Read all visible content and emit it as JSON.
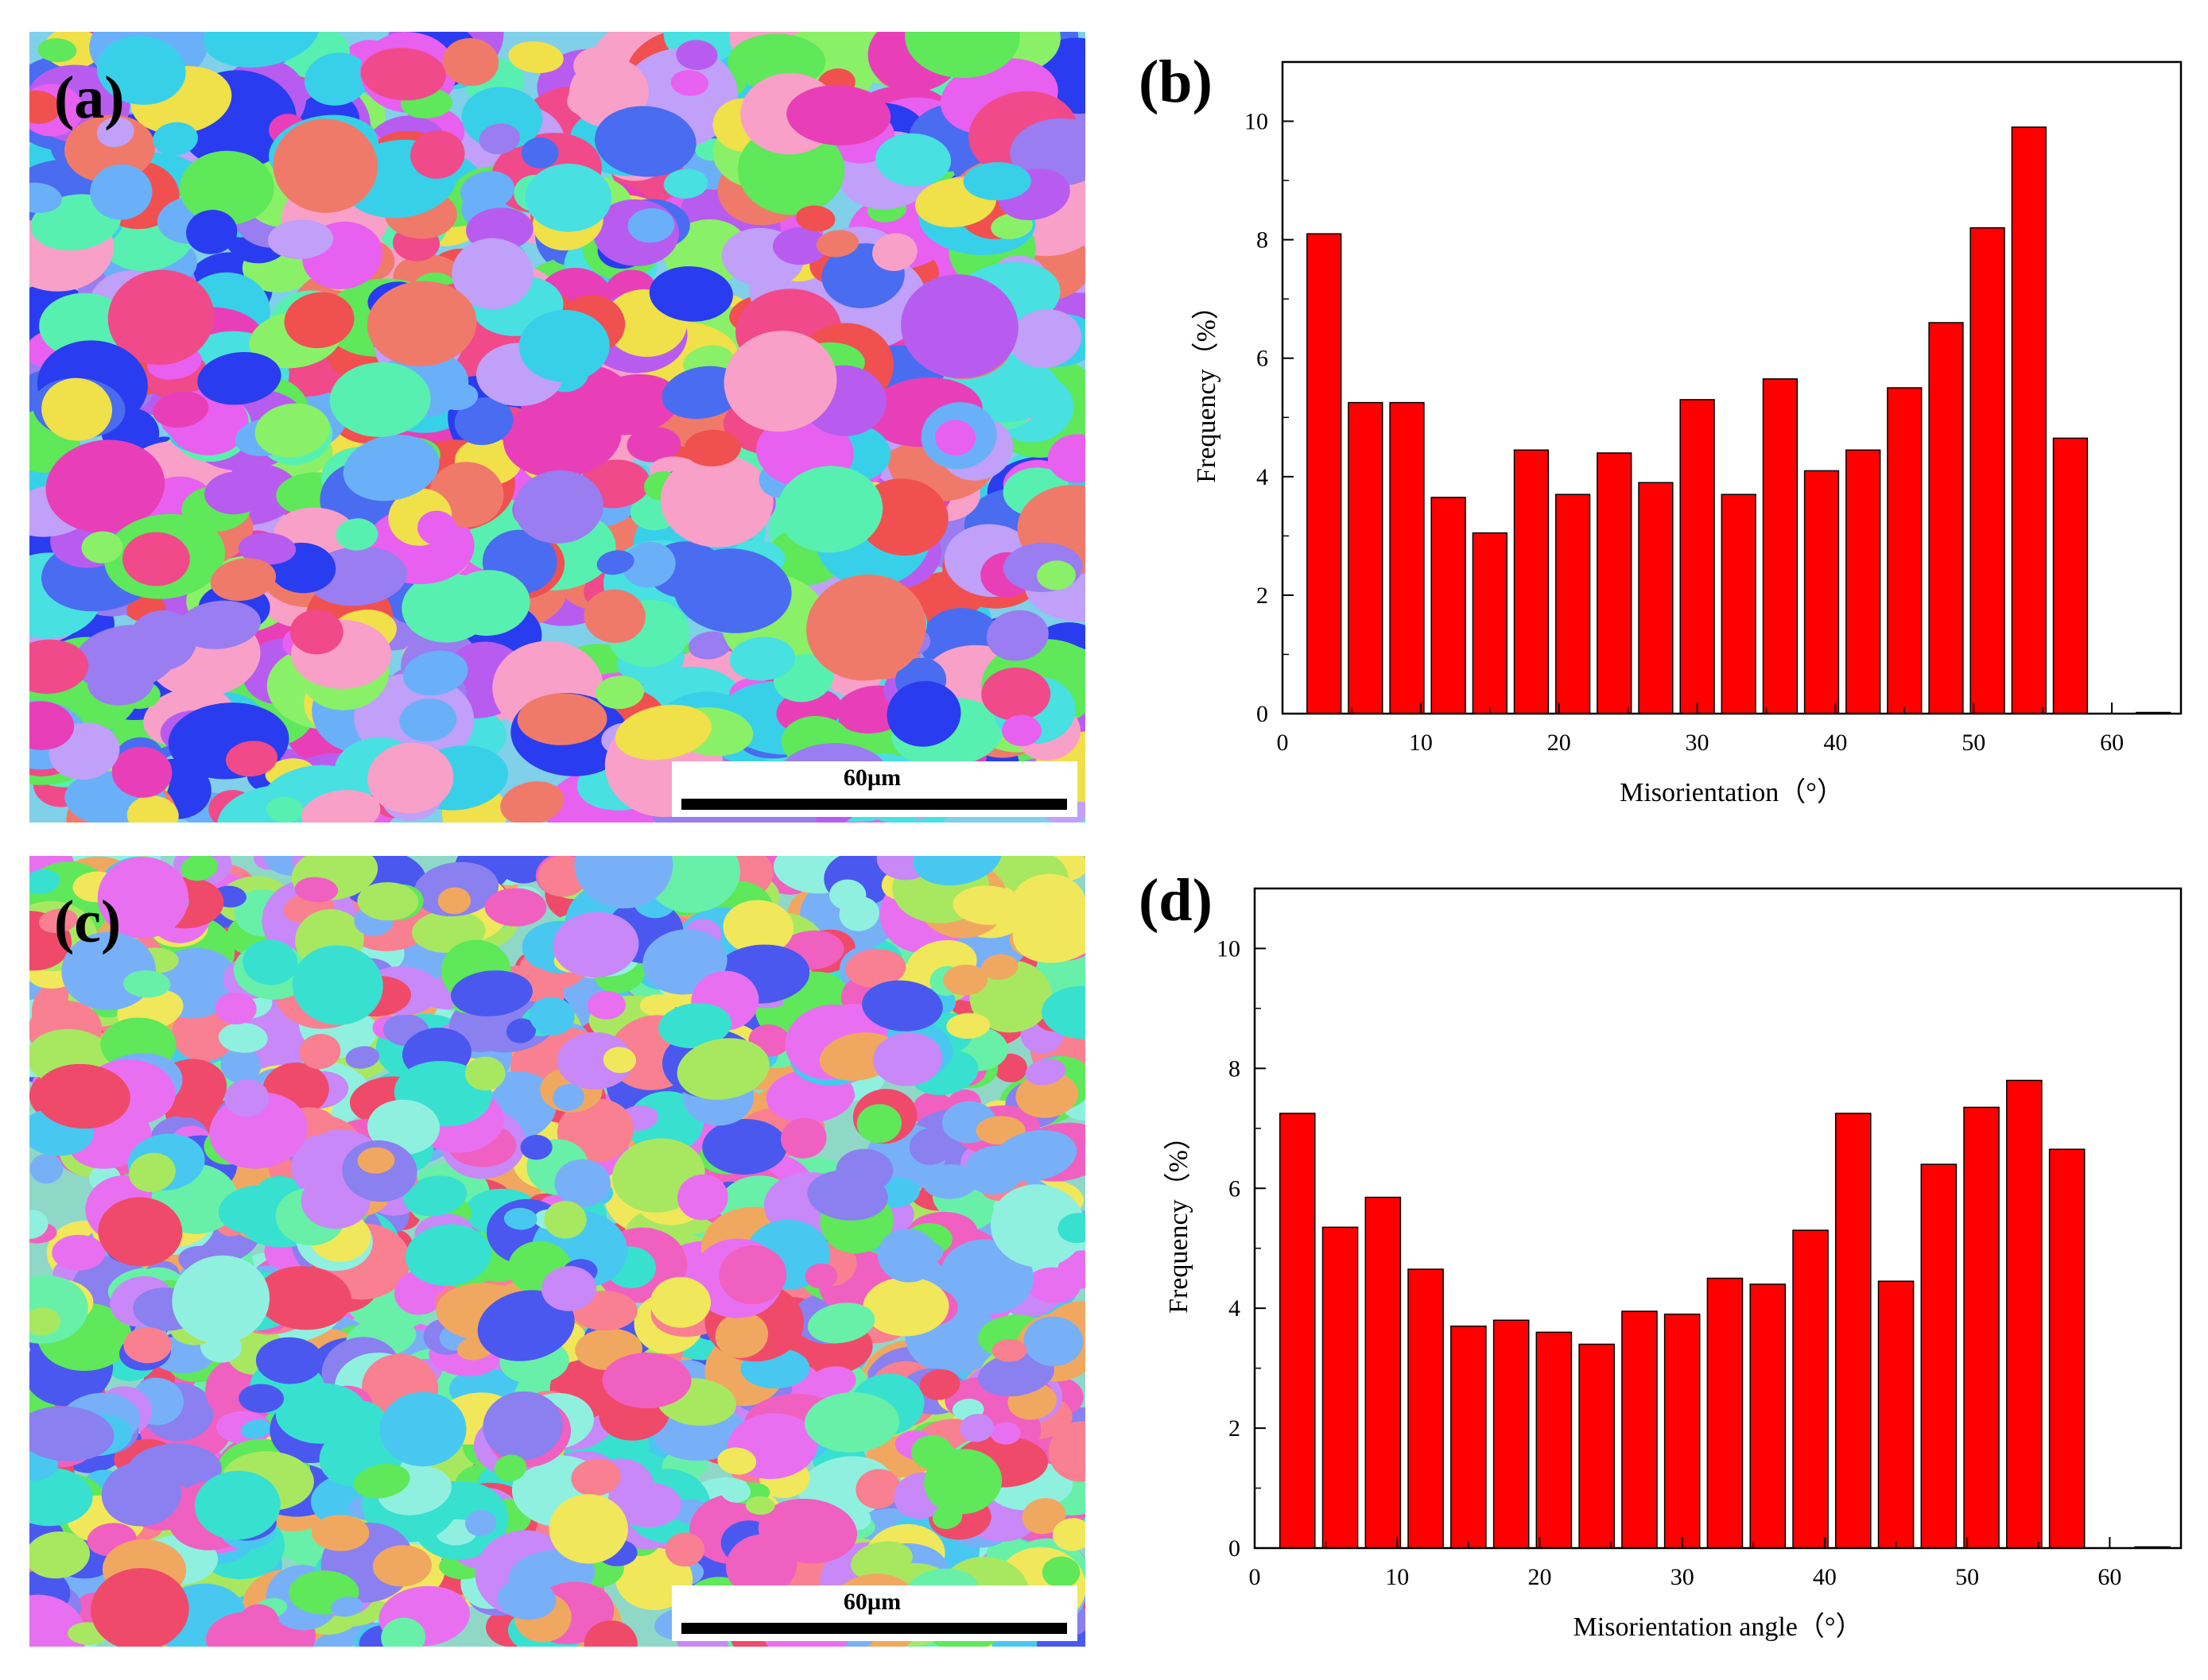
{
  "panels": {
    "a": {
      "label": "(a)",
      "scale_bar": "60µm",
      "colors": [
        "#4a6cf0",
        "#e83fb8",
        "#5ee85a",
        "#38d0e8",
        "#9a7df0",
        "#f07a6a",
        "#f0e04a",
        "#b85cf0",
        "#6ab0f8",
        "#f04a8a",
        "#58f0b0",
        "#2a3cf0",
        "#e860f0",
        "#8af068",
        "#f8a0c8",
        "#48e0e0",
        "#c0a0f8",
        "#f05050"
      ]
    },
    "c": {
      "label": "(c)",
      "scale_bar": "60µm",
      "colors": [
        "#5ee85a",
        "#48c8f0",
        "#8a80f0",
        "#f060c0",
        "#68f0a8",
        "#f0e85a",
        "#4a58f0",
        "#f88090",
        "#a8e860",
        "#38e0d0",
        "#c888f8",
        "#f04a6a",
        "#78b0f8",
        "#f0a860",
        "#e870f0",
        "#90f0e0"
      ]
    }
  },
  "chart_data": [
    {
      "panel_label": "(b)",
      "type": "bar",
      "x": [
        3,
        6,
        9,
        12,
        15,
        18,
        21,
        24,
        27,
        30,
        33,
        36,
        39,
        42,
        45,
        48,
        51,
        54,
        57,
        60,
        63
      ],
      "values": [
        8.1,
        5.25,
        5.25,
        3.65,
        3.05,
        4.45,
        3.7,
        4.4,
        3.9,
        5.3,
        3.7,
        5.65,
        4.1,
        4.45,
        5.5,
        6.6,
        8.2,
        9.9,
        4.65,
        0,
        0.02
      ],
      "xlabel": "Misorientation（°）",
      "ylabel": "Frequency（%）",
      "xlim": [
        0,
        65
      ],
      "ylim": [
        0,
        11
      ],
      "xticks": [
        0,
        10,
        20,
        30,
        40,
        50,
        60
      ],
      "yticks": [
        0,
        2,
        4,
        6,
        8,
        10
      ],
      "bar_color": "#ff0000"
    },
    {
      "panel_label": "(d)",
      "type": "bar",
      "x": [
        3,
        6,
        9,
        12,
        15,
        18,
        21,
        24,
        27,
        30,
        33,
        36,
        39,
        42,
        45,
        48,
        51,
        54,
        57,
        60,
        63
      ],
      "values": [
        7.25,
        5.35,
        5.85,
        4.65,
        3.7,
        3.8,
        3.6,
        3.4,
        3.95,
        3.9,
        4.5,
        4.4,
        5.3,
        7.25,
        4.45,
        6.4,
        7.35,
        7.8,
        6.65,
        0,
        0.02
      ],
      "xlabel": "Misorientation angle（°）",
      "ylabel": "Frequency（%）",
      "xlim": [
        0,
        65
      ],
      "ylim": [
        0,
        11
      ],
      "xticks": [
        0,
        10,
        20,
        30,
        40,
        50,
        60
      ],
      "yticks": [
        0,
        2,
        4,
        6,
        8,
        10
      ],
      "bar_color": "#ff0000"
    }
  ]
}
